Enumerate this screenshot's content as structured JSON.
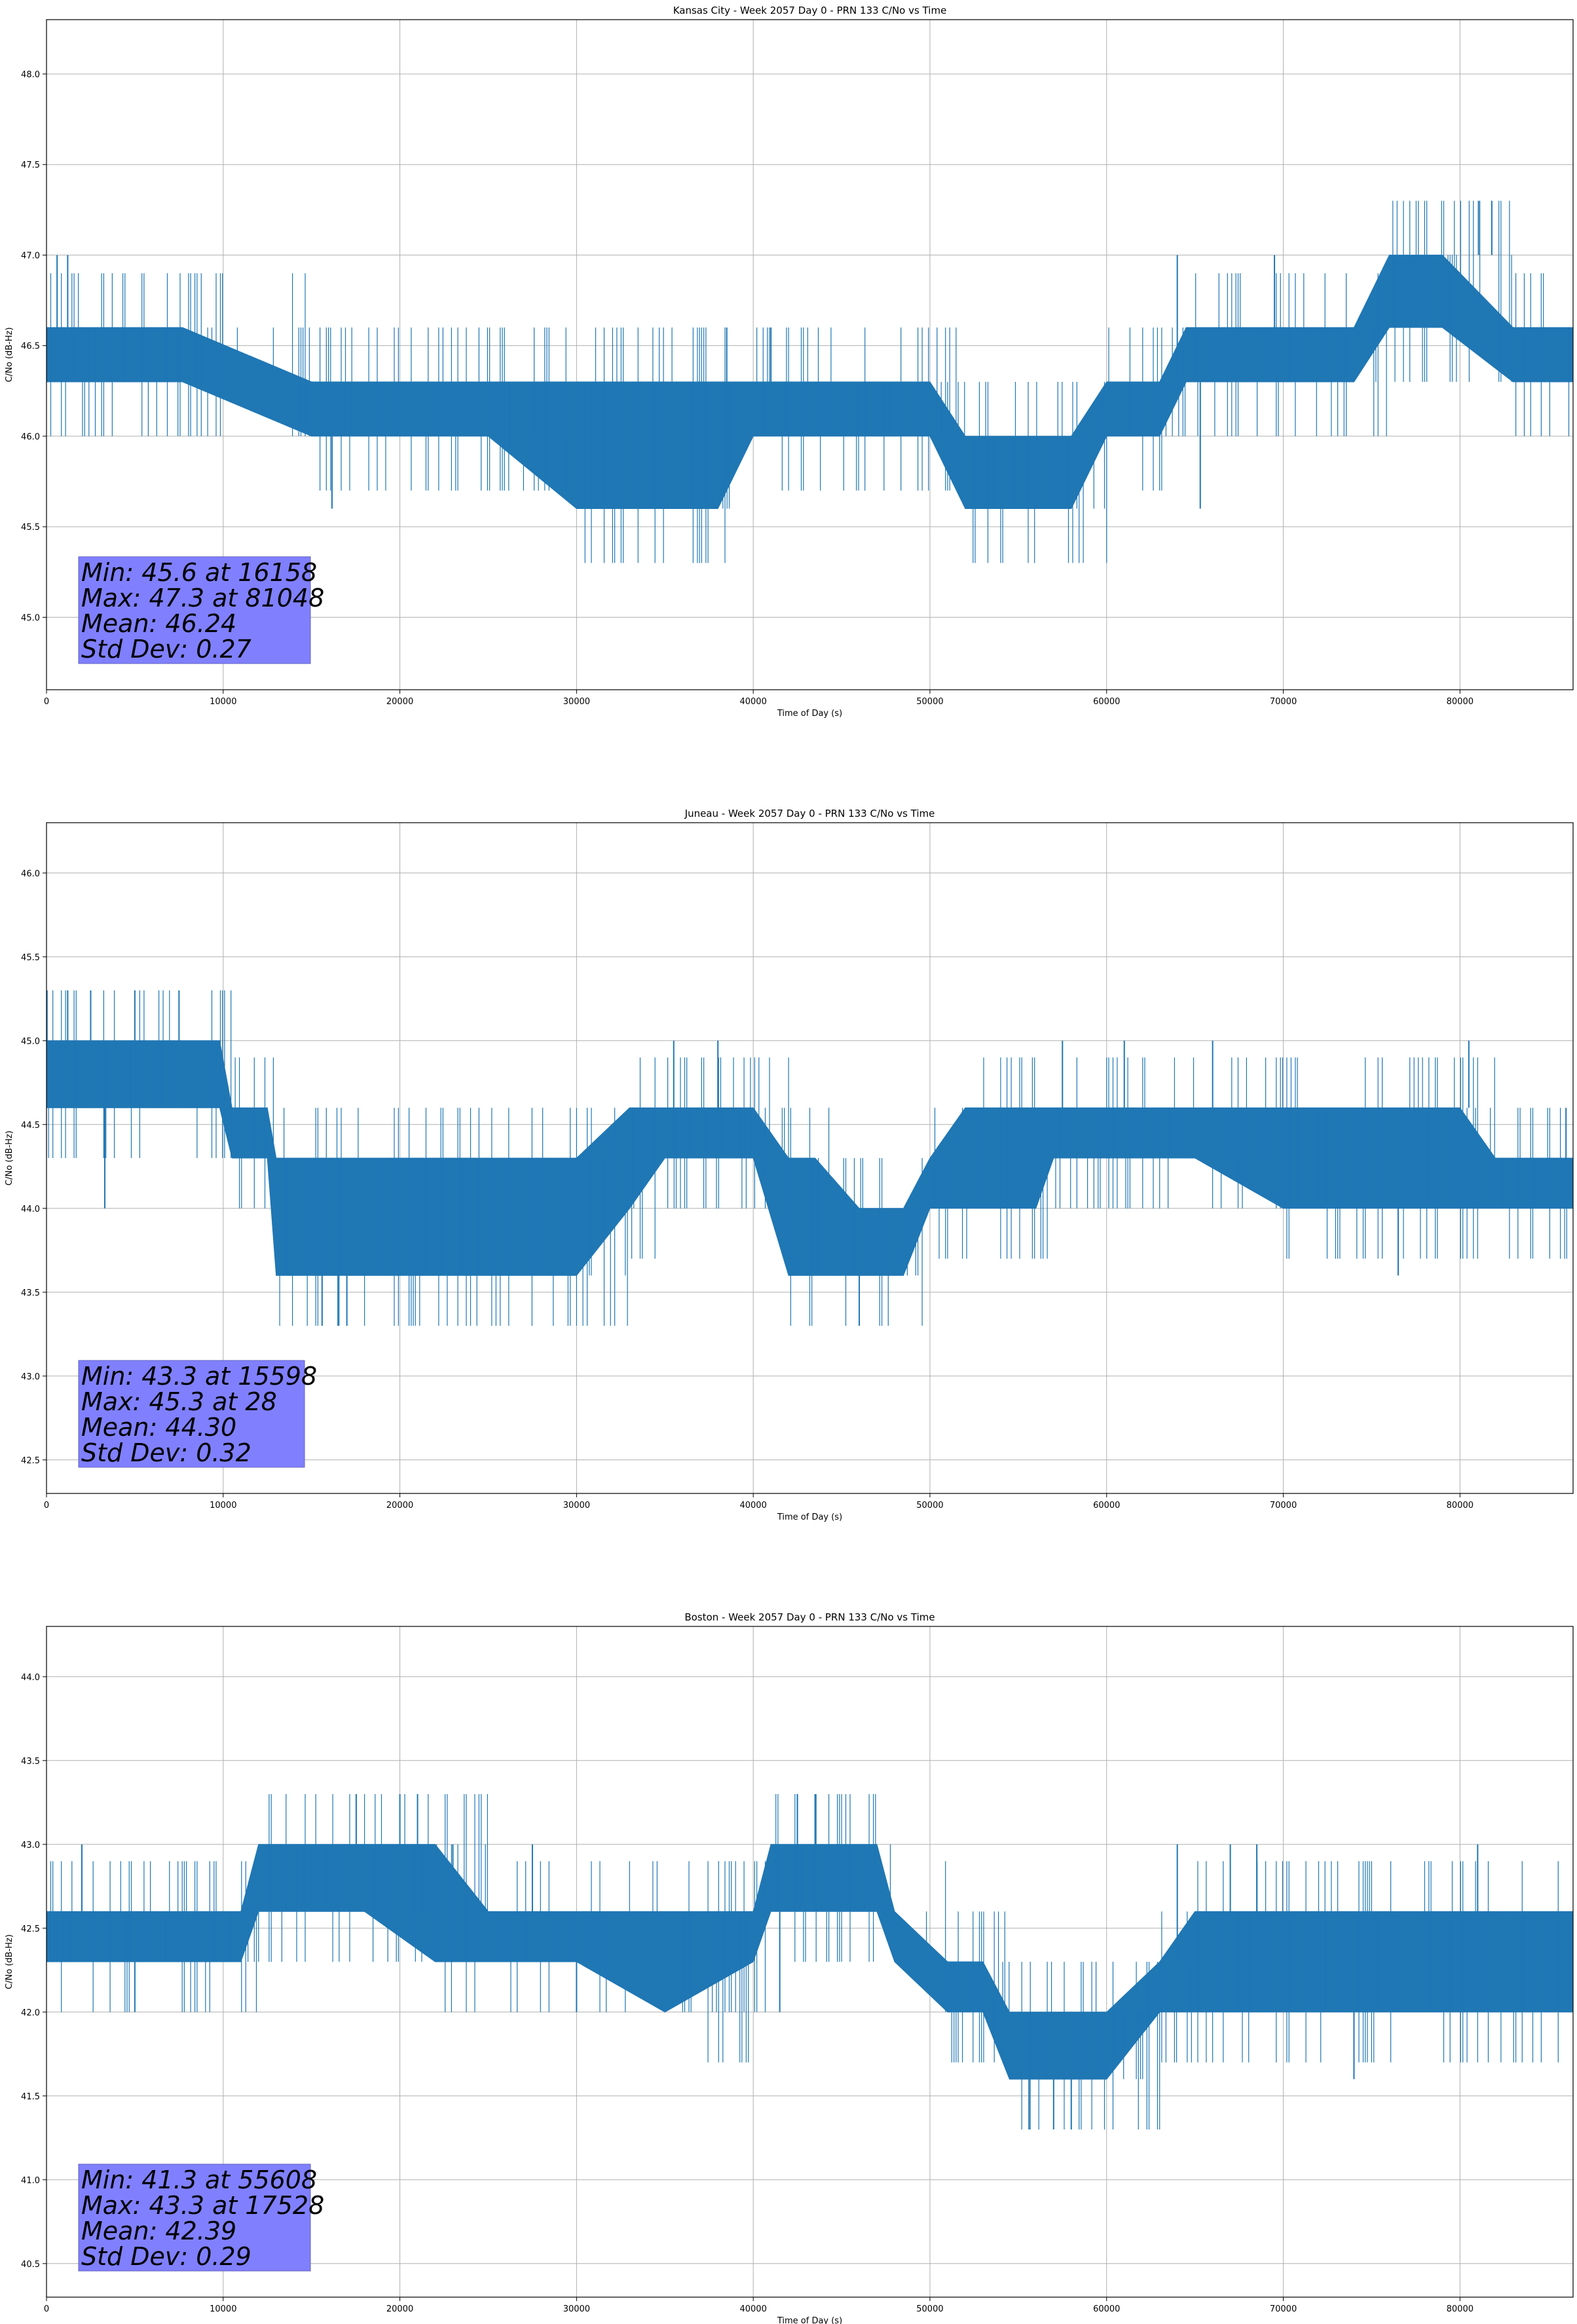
{
  "chart_data": [
    {
      "type": "line",
      "title": "Kansas City - Week 2057 Day 0 - PRN 133 C/No vs Time",
      "xlabel": "Time of Day (s)",
      "ylabel": "C/No (dB-Hz)",
      "xlim": [
        0,
        86400
      ],
      "ylim": [
        44.6,
        48.3
      ],
      "xticks": [
        0,
        10000,
        20000,
        30000,
        40000,
        50000,
        60000,
        70000,
        80000
      ],
      "yticks": [
        45.0,
        45.5,
        46.0,
        46.5,
        47.0,
        47.5,
        48.0
      ],
      "grid": true,
      "color": "#1f77b4",
      "series": [
        {
          "x": [
            0,
            7700,
            15000,
            20000,
            25000,
            30000,
            35000,
            38000,
            40000,
            43000,
            45000,
            47000,
            50000,
            52000,
            55000,
            58000,
            60000,
            63000,
            64500,
            67000,
            70000,
            74000,
            76000,
            79000,
            83000,
            86400
          ],
          "y": [
            46.45,
            46.45,
            46.15,
            46.15,
            46.1,
            46.1,
            46.1,
            46.1,
            46.15,
            46.15,
            46.15,
            46.15,
            46.15,
            45.85,
            45.8,
            45.8,
            46.15,
            46.15,
            46.45,
            46.45,
            46.45,
            46.45,
            46.8,
            46.8,
            46.45,
            46.45
          ],
          "band_low": [
            46.3,
            46.3,
            46.0,
            46.0,
            46.0,
            45.6,
            45.6,
            45.6,
            46.0,
            46.0,
            46.0,
            46.0,
            46.0,
            45.6,
            45.6,
            45.6,
            46.0,
            46.0,
            46.3,
            46.3,
            46.3,
            46.3,
            46.6,
            46.6,
            46.3,
            46.3
          ],
          "band_high": [
            46.6,
            46.6,
            46.3,
            46.3,
            46.3,
            46.3,
            46.3,
            46.3,
            46.3,
            46.3,
            46.3,
            46.3,
            46.3,
            46.0,
            46.0,
            46.0,
            46.3,
            46.3,
            46.6,
            46.6,
            46.6,
            46.6,
            47.0,
            47.0,
            46.6,
            46.6
          ],
          "spikes": [
            [
              600,
              47.0
            ],
            [
              1200,
              47.0
            ],
            [
              16158,
              45.6
            ],
            [
              38500,
              46.6
            ],
            [
              41000,
              46.6
            ],
            [
              64000,
              47.0
            ],
            [
              69500,
              47.0
            ],
            [
              81048,
              47.3
            ],
            [
              81800,
              47.3
            ],
            [
              65300,
              45.6
            ]
          ]
        }
      ],
      "stats": {
        "line1": "Min: 45.6 at 16158",
        "line2": "Max: 47.3 at 81048",
        "line3": "Mean: 46.24",
        "line4": "Std Dev: 0.27"
      }
    },
    {
      "type": "line",
      "title": "Juneau - Week 2057 Day 0 - PRN 133 C/No vs Time",
      "xlabel": "Time of Day (s)",
      "ylabel": "C/No (dB-Hz)",
      "xlim": [
        0,
        86400
      ],
      "ylim": [
        42.3,
        46.3
      ],
      "xticks": [
        0,
        10000,
        20000,
        30000,
        40000,
        50000,
        60000,
        70000,
        80000
      ],
      "yticks": [
        42.5,
        43.0,
        43.5,
        44.0,
        44.5,
        45.0,
        45.5,
        46.0
      ],
      "grid": true,
      "color": "#1f77b4",
      "series": [
        {
          "x": [
            0,
            9800,
            10500,
            12500,
            13000,
            20000,
            25000,
            30000,
            33000,
            35000,
            40000,
            42000,
            43500,
            46000,
            48500,
            50000,
            52000,
            56000,
            57000,
            65000,
            70000,
            76000,
            80000,
            82000,
            86400
          ],
          "y": [
            44.8,
            44.8,
            44.45,
            44.45,
            44.0,
            43.95,
            43.95,
            44.0,
            44.15,
            44.45,
            44.45,
            44.15,
            44.0,
            43.8,
            43.8,
            44.15,
            44.3,
            44.3,
            44.45,
            44.45,
            44.45,
            44.3,
            44.45,
            44.15,
            44.15
          ],
          "band_low": [
            44.6,
            44.6,
            44.3,
            44.3,
            43.6,
            43.6,
            43.6,
            43.6,
            44.0,
            44.3,
            44.3,
            43.6,
            43.6,
            43.6,
            43.6,
            44.0,
            44.0,
            44.0,
            44.3,
            44.3,
            44.0,
            44.0,
            44.0,
            44.0,
            44.0
          ],
          "band_high": [
            45.0,
            45.0,
            44.6,
            44.6,
            44.3,
            44.3,
            44.3,
            44.3,
            44.6,
            44.6,
            44.6,
            44.3,
            44.3,
            44.0,
            44.0,
            44.3,
            44.6,
            44.6,
            44.6,
            44.6,
            44.6,
            44.6,
            44.6,
            44.3,
            44.3
          ],
          "spikes": [
            [
              28,
              45.3
            ],
            [
              1200,
              45.3
            ],
            [
              2500,
              45.3
            ],
            [
              5000,
              45.3
            ],
            [
              7500,
              45.3
            ],
            [
              3300,
              44.0
            ],
            [
              15598,
              43.3
            ],
            [
              16500,
              43.3
            ],
            [
              17000,
              43.3
            ],
            [
              35500,
              45.0
            ],
            [
              38000,
              45.0
            ],
            [
              46000,
              43.3
            ],
            [
              57500,
              45.0
            ],
            [
              61000,
              45.0
            ],
            [
              66000,
              45.0
            ],
            [
              76500,
              43.6
            ],
            [
              80500,
              45.0
            ],
            [
              86000,
              44.6
            ]
          ]
        }
      ],
      "stats": {
        "line1": "Min: 43.3 at 15598",
        "line2": "Max: 45.3 at 28",
        "line3": "Mean: 44.30",
        "line4": "Std Dev: 0.32"
      }
    },
    {
      "type": "line",
      "title": "Boston - Week 2057 Day 0 - PRN 133 C/No vs Time",
      "xlabel": "Time of Day (s)",
      "ylabel": "C/No (dB-Hz)",
      "xlim": [
        0,
        86400
      ],
      "ylim": [
        40.3,
        44.3
      ],
      "xticks": [
        0,
        10000,
        20000,
        30000,
        40000,
        50000,
        60000,
        70000,
        80000
      ],
      "yticks": [
        40.5,
        41.0,
        41.5,
        42.0,
        42.5,
        43.0,
        43.5,
        44.0
      ],
      "grid": true,
      "color": "#1f77b4",
      "series": [
        {
          "x": [
            0,
            5000,
            11000,
            12000,
            18000,
            22000,
            25000,
            30000,
            35000,
            40000,
            41000,
            47000,
            48000,
            51000,
            53000,
            54500,
            60000,
            63000,
            65000,
            70000,
            75000,
            80000,
            86400
          ],
          "y": [
            42.45,
            42.45,
            42.45,
            42.8,
            42.8,
            42.6,
            42.45,
            42.45,
            42.3,
            42.45,
            42.8,
            42.8,
            42.45,
            42.15,
            42.15,
            41.85,
            41.85,
            42.15,
            42.3,
            42.45,
            42.45,
            42.3,
            42.3
          ],
          "band_low": [
            42.3,
            42.3,
            42.3,
            42.6,
            42.6,
            42.3,
            42.3,
            42.3,
            42.0,
            42.3,
            42.6,
            42.6,
            42.3,
            42.0,
            42.0,
            41.6,
            41.6,
            42.0,
            42.0,
            42.0,
            42.0,
            42.0,
            42.0
          ],
          "band_high": [
            42.6,
            42.6,
            42.6,
            43.0,
            43.0,
            43.0,
            42.6,
            42.6,
            42.6,
            42.6,
            43.0,
            43.0,
            42.6,
            42.3,
            42.3,
            42.0,
            42.0,
            42.3,
            42.6,
            42.6,
            42.6,
            42.6,
            42.6
          ],
          "spikes": [
            [
              2000,
              43.0
            ],
            [
              5000,
              42.0
            ],
            [
              15000,
              43.0
            ],
            [
              17528,
              43.3
            ],
            [
              20000,
              43.3
            ],
            [
              21000,
              43.3
            ],
            [
              23000,
              43.0
            ],
            [
              27500,
              43.0
            ],
            [
              30000,
              42.0
            ],
            [
              41500,
              42.0
            ],
            [
              42500,
              43.3
            ],
            [
              43500,
              43.3
            ],
            [
              55608,
              41.3
            ],
            [
              57000,
              41.3
            ],
            [
              58000,
              41.3
            ],
            [
              61000,
              41.6
            ],
            [
              64000,
              43.0
            ],
            [
              67000,
              43.0
            ],
            [
              68500,
              43.0
            ],
            [
              74000,
              41.6
            ],
            [
              81000,
              43.0
            ]
          ]
        }
      ],
      "stats": {
        "line1": "Min: 41.3 at 55608",
        "line2": "Max: 43.3 at 17528",
        "line3": "Mean: 42.39",
        "line4": "Std Dev: 0.29"
      }
    }
  ]
}
